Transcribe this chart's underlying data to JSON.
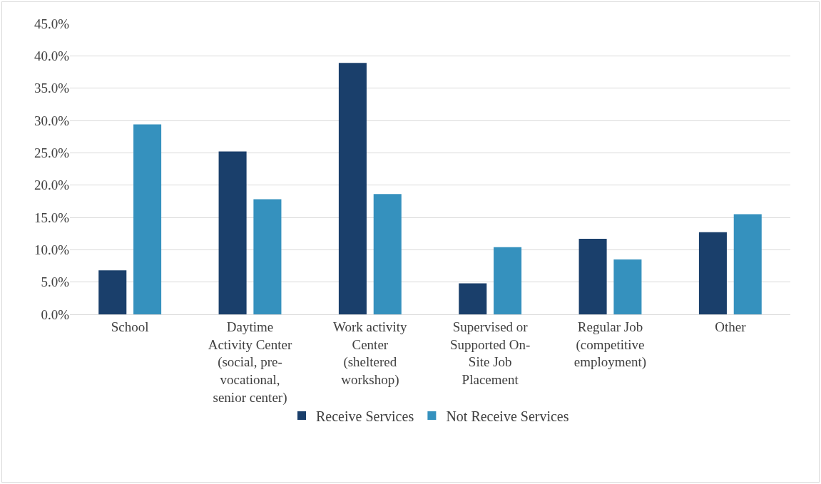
{
  "chart_data": {
    "type": "bar",
    "categories": [
      "School",
      "Daytime Activity Center (social, pre-vocational, senior center)",
      "Work activity Center (sheltered workshop)",
      "Supervised or Supported On-Site Job Placement",
      "Regular Job (competitive employment)",
      "Other"
    ],
    "series": [
      {
        "name": "Receive Services",
        "color": "#1a3f6b",
        "values": [
          6.8,
          25.2,
          38.9,
          4.8,
          11.7,
          12.7
        ]
      },
      {
        "name": "Not Receive Services",
        "color": "#3591be",
        "values": [
          29.4,
          17.8,
          18.6,
          10.4,
          8.5,
          15.5
        ]
      }
    ],
    "ylim": [
      0,
      45
    ],
    "yticks": [
      {
        "value": 0,
        "label": "0.0%"
      },
      {
        "value": 5,
        "label": "5.0%"
      },
      {
        "value": 10,
        "label": "10.0%"
      },
      {
        "value": 15,
        "label": "15.0%"
      },
      {
        "value": 20,
        "label": "20.0%"
      },
      {
        "value": 25,
        "label": "25.0%"
      },
      {
        "value": 30,
        "label": "30.0%"
      },
      {
        "value": 35,
        "label": "35.0%"
      },
      {
        "value": 40,
        "label": "40.0%"
      },
      {
        "value": 45,
        "label": "45.0%"
      }
    ],
    "grid": "y",
    "legend": "bottom"
  }
}
